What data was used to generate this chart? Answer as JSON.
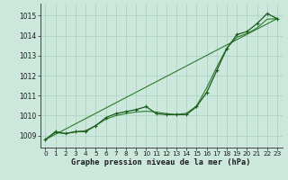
{
  "title": "Graphe pression niveau de la mer (hPa)",
  "background_color": "#cce8dc",
  "grid_color": "#aacfc0",
  "line_color_dark": "#1a5c1a",
  "line_color_mid": "#2d7a2d",
  "xlim": [
    -0.5,
    23.5
  ],
  "ylim": [
    1008.4,
    1015.6
  ],
  "yticks": [
    1009,
    1010,
    1011,
    1012,
    1013,
    1014,
    1015
  ],
  "xticks": [
    0,
    1,
    2,
    3,
    4,
    5,
    6,
    7,
    8,
    9,
    10,
    11,
    12,
    13,
    14,
    15,
    16,
    17,
    18,
    19,
    20,
    21,
    22,
    23
  ],
  "hours": [
    0,
    1,
    2,
    3,
    4,
    5,
    6,
    7,
    8,
    9,
    10,
    11,
    12,
    13,
    14,
    15,
    16,
    17,
    18,
    19,
    20,
    21,
    22,
    23
  ],
  "pressure_main": [
    1008.8,
    1009.2,
    1009.1,
    1009.2,
    1009.2,
    1009.5,
    1009.9,
    1010.1,
    1010.2,
    1010.3,
    1010.45,
    1010.1,
    1010.05,
    1010.05,
    1010.05,
    1010.45,
    1011.15,
    1012.25,
    1013.35,
    1014.05,
    1014.2,
    1014.6,
    1015.1,
    1014.85
  ],
  "pressure_smooth": [
    1008.8,
    1009.15,
    1009.1,
    1009.18,
    1009.25,
    1009.5,
    1009.82,
    1010.0,
    1010.1,
    1010.18,
    1010.22,
    1010.18,
    1010.1,
    1010.05,
    1010.12,
    1010.48,
    1011.38,
    1012.42,
    1013.38,
    1013.92,
    1014.1,
    1014.38,
    1014.82,
    1014.85
  ],
  "ylabel_top_partial": "1015"
}
